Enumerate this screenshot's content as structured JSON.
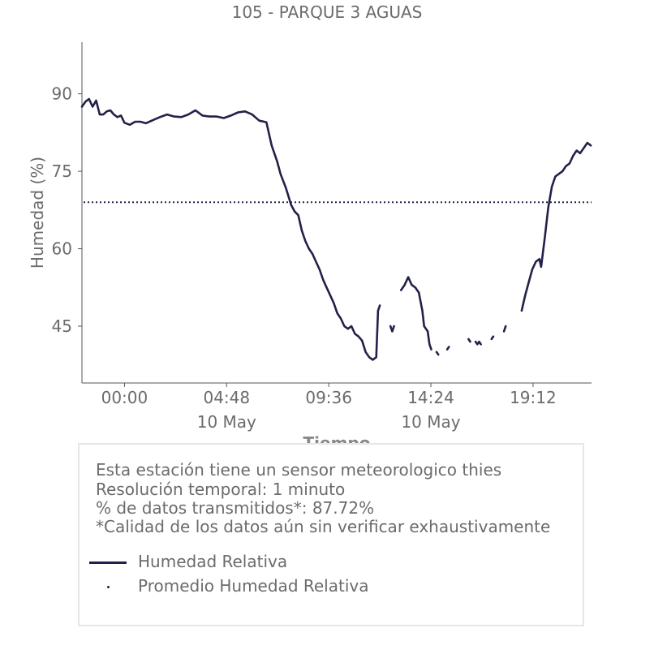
{
  "title": "105 - PARQUE 3 AGUAS",
  "colors": {
    "series": "#21214a",
    "text": "#6b6b6b",
    "axis": "#555555",
    "box_border": "#e6e6e6"
  },
  "chart_data": {
    "type": "line",
    "title": "105 - PARQUE 3 AGUAS",
    "xlabel": "Tiempo",
    "ylabel": "Humedad (%)",
    "xlim": [
      "2023-05-09 22:00",
      "2023-05-10 21:57"
    ],
    "ylim": [
      34,
      100
    ],
    "x_ticks": [
      {
        "time": "2023-05-10 00:00",
        "label": "00:00",
        "sublabel": ""
      },
      {
        "time": "2023-05-10 04:48",
        "label": "04:48",
        "sublabel": "10 May"
      },
      {
        "time": "2023-05-10 09:36",
        "label": "09:36",
        "sublabel": ""
      },
      {
        "time": "2023-05-10 14:24",
        "label": "14:24",
        "sublabel": "10 May"
      },
      {
        "time": "2023-05-10 19:12",
        "label": "19:12",
        "sublabel": ""
      }
    ],
    "y_ticks": [
      45,
      60,
      75,
      90
    ],
    "grid": false,
    "legend_position": "bottom",
    "series": [
      {
        "name": "Humedad Relativa",
        "style": "solid",
        "segments": [
          [
            [
              "2023-05-09 22:00",
              87.5
            ],
            [
              "2023-05-09 22:10",
              88.5
            ],
            [
              "2023-05-09 22:20",
              89.0
            ],
            [
              "2023-05-09 22:30",
              87.5
            ],
            [
              "2023-05-09 22:40",
              88.7
            ],
            [
              "2023-05-09 22:50",
              86.0
            ],
            [
              "2023-05-09 23:00",
              86.0
            ],
            [
              "2023-05-09 23:10",
              86.6
            ],
            [
              "2023-05-09 23:20",
              86.8
            ],
            [
              "2023-05-09 23:30",
              86.0
            ],
            [
              "2023-05-09 23:40",
              85.5
            ],
            [
              "2023-05-09 23:50",
              85.8
            ],
            [
              "2023-05-10 00:00",
              84.4
            ],
            [
              "2023-05-10 00:15",
              84.0
            ],
            [
              "2023-05-10 00:30",
              84.6
            ],
            [
              "2023-05-10 00:45",
              84.6
            ],
            [
              "2023-05-10 01:00",
              84.3
            ],
            [
              "2023-05-10 01:20",
              84.9
            ],
            [
              "2023-05-10 01:40",
              85.5
            ],
            [
              "2023-05-10 02:00",
              86.0
            ],
            [
              "2023-05-10 02:20",
              85.6
            ],
            [
              "2023-05-10 02:40",
              85.5
            ],
            [
              "2023-05-10 03:00",
              86.0
            ],
            [
              "2023-05-10 03:20",
              86.8
            ],
            [
              "2023-05-10 03:40",
              85.8
            ],
            [
              "2023-05-10 04:00",
              85.6
            ],
            [
              "2023-05-10 04:20",
              85.6
            ],
            [
              "2023-05-10 04:40",
              85.3
            ],
            [
              "2023-05-10 05:00",
              85.8
            ],
            [
              "2023-05-10 05:20",
              86.4
            ],
            [
              "2023-05-10 05:40",
              86.6
            ],
            [
              "2023-05-10 06:00",
              86.0
            ],
            [
              "2023-05-10 06:20",
              84.8
            ],
            [
              "2023-05-10 06:40",
              84.5
            ],
            [
              "2023-05-10 06:55",
              80.0
            ],
            [
              "2023-05-10 07:10",
              77.0
            ],
            [
              "2023-05-10 07:20",
              74.5
            ],
            [
              "2023-05-10 07:35",
              71.8
            ],
            [
              "2023-05-10 07:50",
              68.5
            ],
            [
              "2023-05-10 08:00",
              67.2
            ],
            [
              "2023-05-10 08:10",
              66.5
            ],
            [
              "2023-05-10 08:20",
              63.5
            ],
            [
              "2023-05-10 08:30",
              61.5
            ],
            [
              "2023-05-10 08:40",
              60.0
            ],
            [
              "2023-05-10 08:50",
              59.0
            ],
            [
              "2023-05-10 09:00",
              57.5
            ],
            [
              "2023-05-10 09:10",
              56.0
            ],
            [
              "2023-05-10 09:20",
              54.0
            ],
            [
              "2023-05-10 09:30",
              52.5
            ],
            [
              "2023-05-10 09:40",
              51.0
            ],
            [
              "2023-05-10 09:50",
              49.5
            ],
            [
              "2023-05-10 10:00",
              47.5
            ],
            [
              "2023-05-10 10:10",
              46.5
            ],
            [
              "2023-05-10 10:20",
              45.0
            ],
            [
              "2023-05-10 10:30",
              44.5
            ],
            [
              "2023-05-10 10:40",
              45.0
            ],
            [
              "2023-05-10 10:50",
              43.5
            ],
            [
              "2023-05-10 11:00",
              43.0
            ],
            [
              "2023-05-10 11:10",
              42.2
            ],
            [
              "2023-05-10 11:20",
              40.0
            ],
            [
              "2023-05-10 11:30",
              39.0
            ],
            [
              "2023-05-10 11:40",
              38.5
            ],
            [
              "2023-05-10 11:50",
              39.0
            ],
            [
              "2023-05-10 11:55",
              48.0
            ],
            [
              "2023-05-10 12:00",
              49.0
            ]
          ],
          [
            [
              "2023-05-10 12:30",
              45.0
            ],
            [
              "2023-05-10 12:35",
              44.0
            ],
            [
              "2023-05-10 12:40",
              45.0
            ]
          ],
          [
            [
              "2023-05-10 13:00",
              52.0
            ],
            [
              "2023-05-10 13:10",
              53.0
            ],
            [
              "2023-05-10 13:20",
              54.5
            ],
            [
              "2023-05-10 13:30",
              53.0
            ],
            [
              "2023-05-10 13:40",
              52.5
            ],
            [
              "2023-05-10 13:50",
              51.5
            ],
            [
              "2023-05-10 14:00",
              48.0
            ],
            [
              "2023-05-10 14:05",
              45.0
            ],
            [
              "2023-05-10 14:15",
              44.0
            ],
            [
              "2023-05-10 14:20",
              41.5
            ],
            [
              "2023-05-10 14:25",
              40.5
            ]
          ],
          [
            [
              "2023-05-10 14:40",
              40.0
            ],
            [
              "2023-05-10 14:45",
              39.5
            ]
          ],
          [
            [
              "2023-05-10 15:10",
              40.5
            ],
            [
              "2023-05-10 15:15",
              41.0
            ]
          ],
          [
            [
              "2023-05-10 16:10",
              42.5
            ],
            [
              "2023-05-10 16:15",
              42.0
            ]
          ],
          [
            [
              "2023-05-10 16:30",
              42.0
            ],
            [
              "2023-05-10 16:35",
              41.5
            ],
            [
              "2023-05-10 16:40",
              42.0
            ],
            [
              "2023-05-10 16:45",
              41.5
            ]
          ],
          [
            [
              "2023-05-10 17:15",
              42.5
            ],
            [
              "2023-05-10 17:20",
              43.0
            ]
          ],
          [
            [
              "2023-05-10 17:50",
              44.0
            ],
            [
              "2023-05-10 17:55",
              45.0
            ]
          ],
          [
            [
              "2023-05-10 18:40",
              48.0
            ],
            [
              "2023-05-10 18:50",
              51.0
            ],
            [
              "2023-05-10 19:00",
              53.5
            ],
            [
              "2023-05-10 19:10",
              56.0
            ],
            [
              "2023-05-10 19:20",
              57.5
            ],
            [
              "2023-05-10 19:30",
              58.0
            ],
            [
              "2023-05-10 19:35",
              56.5
            ],
            [
              "2023-05-10 19:45",
              62.0
            ],
            [
              "2023-05-10 19:55",
              68.0
            ],
            [
              "2023-05-10 20:05",
              72.0
            ],
            [
              "2023-05-10 20:15",
              74.0
            ],
            [
              "2023-05-10 20:25",
              74.5
            ],
            [
              "2023-05-10 20:35",
              75.0
            ],
            [
              "2023-05-10 20:45",
              76.0
            ],
            [
              "2023-05-10 20:55",
              76.5
            ],
            [
              "2023-05-10 21:05",
              78.0
            ],
            [
              "2023-05-10 21:15",
              79.0
            ],
            [
              "2023-05-10 21:25",
              78.5
            ],
            [
              "2023-05-10 21:35",
              79.5
            ],
            [
              "2023-05-10 21:45",
              80.5
            ],
            [
              "2023-05-10 21:55",
              80.0
            ]
          ]
        ]
      },
      {
        "name": "Promedio Humedad Relativa",
        "style": "dotted",
        "value": 69.0
      }
    ]
  },
  "info": {
    "lines": [
      "Esta estación tiene un sensor meteorologico thies",
      "Resolución temporal: 1 minuto",
      "% de datos transmitidos*: 87.72%",
      "*Calidad de los datos aún sin verificar exhaustivamente"
    ]
  },
  "legend": {
    "items": [
      {
        "label": "Humedad Relativa",
        "marker": "line"
      },
      {
        "label": "Promedio Humedad Relativa",
        "marker": "dot"
      }
    ]
  }
}
